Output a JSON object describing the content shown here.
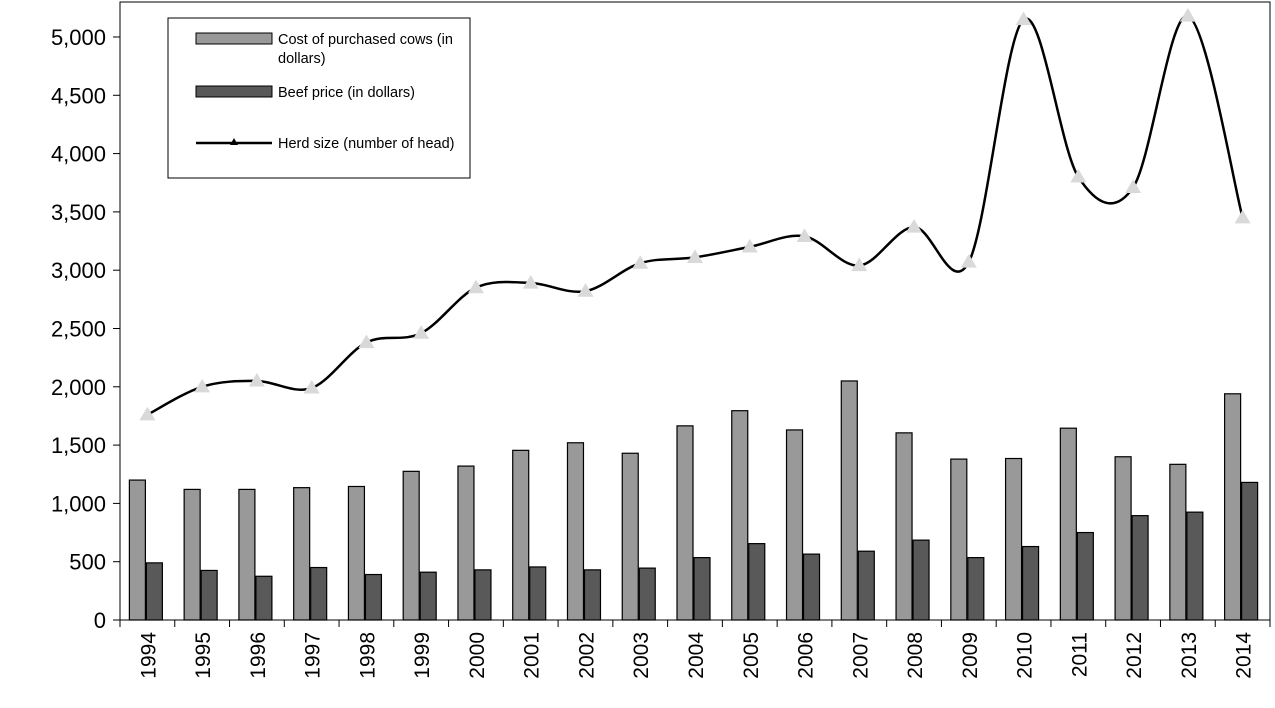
{
  "chart_data": {
    "type": "bar",
    "categories": [
      "1994",
      "1995",
      "1996",
      "1997",
      "1998",
      "1999",
      "2000",
      "2001",
      "2002",
      "2003",
      "2004",
      "2005",
      "2006",
      "2007",
      "2008",
      "2009",
      "2010",
      "2011",
      "2012",
      "2013",
      "2014"
    ],
    "series": [
      {
        "name": "Cost of purchased cows (in dollars)",
        "kind": "bar",
        "color": "#999999",
        "values": [
          1200,
          1120,
          1120,
          1135,
          1145,
          1275,
          1320,
          1455,
          1520,
          1430,
          1665,
          1795,
          1630,
          2050,
          1605,
          1380,
          1385,
          1645,
          1400,
          1335,
          1940
        ]
      },
      {
        "name": "Beef price (in dollars)",
        "kind": "bar",
        "color": "#595959",
        "values": [
          490,
          425,
          375,
          450,
          390,
          410,
          430,
          455,
          430,
          445,
          535,
          655,
          565,
          590,
          685,
          535,
          630,
          750,
          895,
          925,
          1180
        ]
      },
      {
        "name": "Herd size (number of head)",
        "kind": "line",
        "color": "#000000",
        "marker_color": "#d9d9d9",
        "values": [
          1760,
          2000,
          2050,
          1990,
          2380,
          2460,
          2850,
          2890,
          2820,
          3060,
          3110,
          3200,
          3290,
          3040,
          3370,
          3070,
          5150,
          3800,
          3710,
          5180,
          3450
        ]
      }
    ],
    "y_ticks": [
      "0",
      "500",
      "1,000",
      "1,500",
      "2,000",
      "2,500",
      "3,000",
      "3,500",
      "4,000",
      "4,500",
      "5,000"
    ],
    "ylim": [
      0,
      5300
    ],
    "legend_position": "top-left",
    "grid": false
  }
}
